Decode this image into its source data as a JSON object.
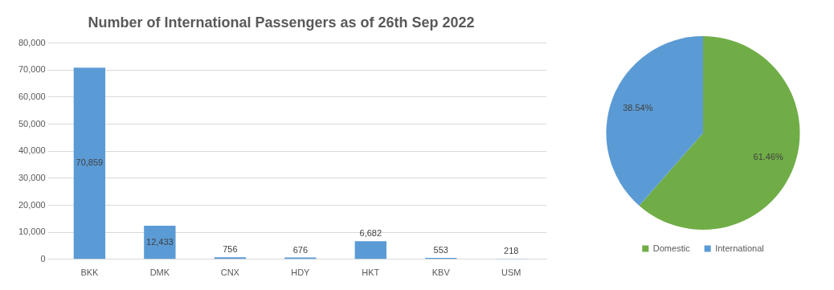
{
  "chart_data": [
    {
      "type": "bar",
      "title": "Number of International Passengers as of 26th Sep 2022",
      "categories": [
        "BKK",
        "DMK",
        "CNX",
        "HDY",
        "HKT",
        "KBV",
        "USM"
      ],
      "values": [
        70859,
        12433,
        756,
        676,
        6682,
        553,
        218
      ],
      "color": "#5b9bd5",
      "value_labels": [
        "70,859",
        "12,433",
        "756",
        "676",
        "6,682",
        "553",
        "218"
      ],
      "ylim": [
        0,
        80000
      ],
      "yticks": [
        0,
        {
          "value": 10000,
          "label": "10,000"
        },
        {
          "value": 20000,
          "label": "20,000"
        },
        {
          "value": 30000,
          "label": "30,000"
        },
        {
          "value": 40000,
          "label": "40,000"
        },
        {
          "value": 50000,
          "label": "50,000"
        },
        {
          "value": 60000,
          "label": "60,000"
        },
        {
          "value": 70000,
          "label": "70,000"
        },
        {
          "value": 80000,
          "label": "80,000"
        }
      ],
      "grid": "y"
    },
    {
      "type": "pie",
      "categories": [
        "Domestic",
        "International"
      ],
      "values": [
        61.46,
        38.54
      ],
      "colors": [
        "#70ad47",
        "#5b9bd5"
      ],
      "value_labels": [
        "61.46%",
        "38.54%"
      ],
      "legend": "bottom"
    }
  ]
}
